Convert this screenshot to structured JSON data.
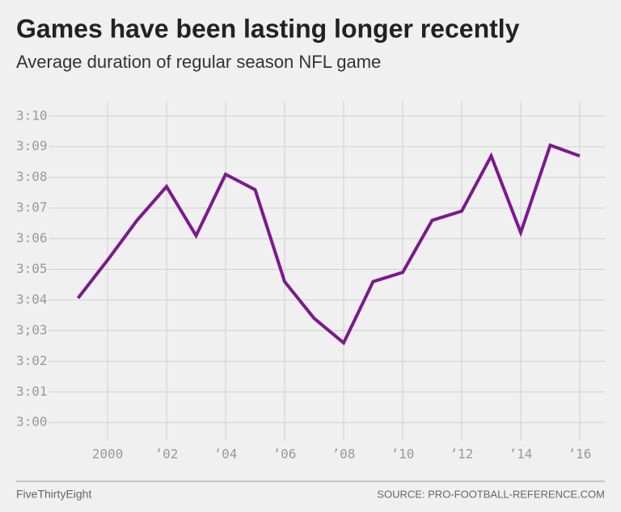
{
  "chart_data": {
    "type": "line",
    "title": "Games have been lasting longer recently",
    "subtitle": "Average duration of regular season NFL game",
    "x": [
      1999,
      2000,
      2001,
      2002,
      2003,
      2004,
      2005,
      2006,
      2007,
      2008,
      2009,
      2010,
      2011,
      2012,
      2013,
      2014,
      2015,
      2016
    ],
    "values": [
      184.06,
      185.3,
      186.6,
      187.7,
      186.1,
      188.1,
      187.6,
      184.6,
      183.4,
      182.6,
      184.6,
      184.9,
      186.6,
      186.9,
      188.7,
      186.2,
      189.05,
      188.7
    ],
    "color": "#7b1a8c",
    "xlim": [
      1998,
      2016.85
    ],
    "xticks": [
      {
        "value": 2000,
        "label": "2000"
      },
      {
        "value": 2002,
        "label": "’02"
      },
      {
        "value": 2004,
        "label": "’04"
      },
      {
        "value": 2006,
        "label": "’06"
      },
      {
        "value": 2008,
        "label": "’08"
      },
      {
        "value": 2010,
        "label": "’10"
      },
      {
        "value": 2012,
        "label": "’12"
      },
      {
        "value": 2014,
        "label": "’14"
      },
      {
        "value": 2016,
        "label": "’16"
      }
    ],
    "ylim": [
      179.4,
      190.1
    ],
    "yticks": [
      {
        "value": 180,
        "label": "3:00"
      },
      {
        "value": 181,
        "label": "3:01"
      },
      {
        "value": 182,
        "label": "3:02"
      },
      {
        "value": 183,
        "label": "3;03"
      },
      {
        "value": 184,
        "label": "3:04"
      },
      {
        "value": 185,
        "label": "3:05"
      },
      {
        "value": 186,
        "label": "3:06"
      },
      {
        "value": 187,
        "label": "3:07"
      },
      {
        "value": 188,
        "label": "3:08"
      },
      {
        "value": 189,
        "label": "3:09"
      },
      {
        "value": 190,
        "label": "3:10"
      }
    ],
    "grid": true,
    "brand": "FiveThirtyEight",
    "source": "SOURCE: PRO-FOOTBALL-REFERENCE.COM"
  }
}
